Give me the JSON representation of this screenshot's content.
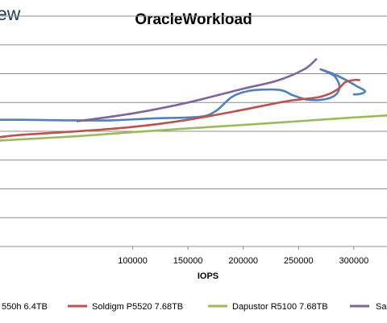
{
  "header": {
    "logo_text": "ew"
  },
  "chart_data": {
    "type": "line",
    "title": "OracleWorkload",
    "xlabel": "IOPS",
    "ylabel": "",
    "x_ticks": [
      "100000",
      "150000",
      "200000",
      "250000",
      "300000"
    ],
    "xlim": [
      -20000,
      330000
    ],
    "ylim": [
      0,
      8
    ],
    "grid": true,
    "legend_position": "bottom",
    "series": [
      {
        "name": "550h 6.4TB",
        "color": "#4f81bd",
        "points": [
          [
            -20000,
            4.4
          ],
          [
            0,
            4.4
          ],
          [
            40000,
            4.38
          ],
          [
            80000,
            4.38
          ],
          [
            120000,
            4.45
          ],
          [
            160000,
            4.5
          ],
          [
            175000,
            4.7
          ],
          [
            190000,
            5.2
          ],
          [
            205000,
            5.4
          ],
          [
            220000,
            5.45
          ],
          [
            235000,
            5.42
          ],
          [
            245000,
            5.25
          ],
          [
            258000,
            5.1
          ],
          [
            272000,
            5.1
          ],
          [
            283000,
            5.25
          ],
          [
            287000,
            5.55
          ],
          [
            283000,
            5.9
          ],
          [
            276000,
            6.05
          ],
          [
            270000,
            6.15
          ],
          [
            281000,
            6.0
          ],
          [
            292000,
            5.8
          ],
          [
            302000,
            5.58
          ],
          [
            310000,
            5.4
          ],
          [
            306000,
            5.3
          ],
          [
            300000,
            5.28
          ]
        ]
      },
      {
        "name": "Soldigm P5520 7.68TB",
        "color": "#c0504d",
        "points": [
          [
            -20000,
            3.8
          ],
          [
            0,
            3.88
          ],
          [
            50000,
            4.0
          ],
          [
            100000,
            4.15
          ],
          [
            150000,
            4.4
          ],
          [
            200000,
            4.75
          ],
          [
            240000,
            5.05
          ],
          [
            270000,
            5.2
          ],
          [
            285000,
            5.45
          ],
          [
            292000,
            5.7
          ],
          [
            300000,
            5.78
          ],
          [
            305000,
            5.78
          ]
        ]
      },
      {
        "name": "Dapustor R5100 7.68TB",
        "color": "#9bbb59",
        "points": [
          [
            -20000,
            3.68
          ],
          [
            50000,
            3.83
          ],
          [
            100000,
            3.97
          ],
          [
            150000,
            4.1
          ],
          [
            200000,
            4.22
          ],
          [
            250000,
            4.35
          ],
          [
            300000,
            4.48
          ],
          [
            330000,
            4.55
          ]
        ]
      },
      {
        "name": "Sa",
        "color": "#8064a2",
        "points": [
          [
            50000,
            4.35
          ],
          [
            100000,
            4.62
          ],
          [
            150000,
            5.0
          ],
          [
            200000,
            5.48
          ],
          [
            230000,
            5.75
          ],
          [
            255000,
            6.15
          ],
          [
            266000,
            6.5
          ]
        ]
      }
    ]
  }
}
